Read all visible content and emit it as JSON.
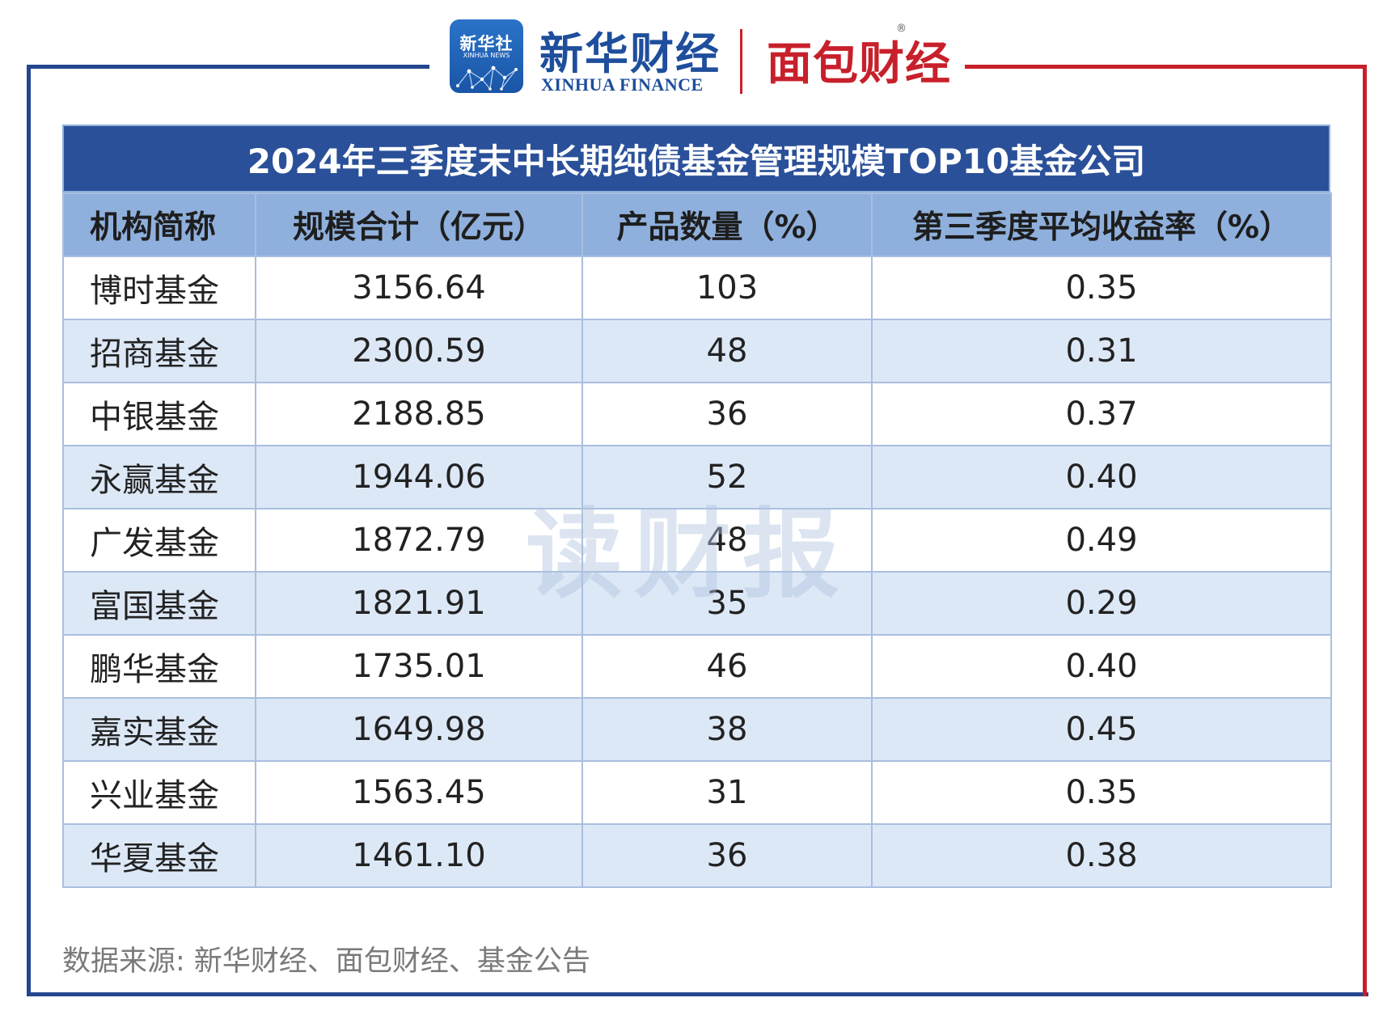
{
  "logos": {
    "xinhua_badge_title": "新华社",
    "xinhua_badge_sub": "XINHUA NEWS",
    "xinhua_cn": "新华财经",
    "xinhua_en": "XINHUA FINANCE",
    "mianbao": "面包财经",
    "registered": "®"
  },
  "watermark": "读财报",
  "chart_data": {
    "type": "table",
    "title": "2024年三季度末中长期纯债基金管理规模TOP10基金公司",
    "columns": [
      "机构简称",
      "规模合计（亿元）",
      "产品数量（%）",
      "第三季度平均收益率（%）"
    ],
    "rows": [
      [
        "博时基金",
        "3156.64",
        "103",
        "0.35"
      ],
      [
        "招商基金",
        "2300.59",
        "48",
        "0.31"
      ],
      [
        "中银基金",
        "2188.85",
        "36",
        "0.37"
      ],
      [
        "永赢基金",
        "1944.06",
        "52",
        "0.40"
      ],
      [
        "广发基金",
        "1872.79",
        "48",
        "0.49"
      ],
      [
        "富国基金",
        "1821.91",
        "35",
        "0.29"
      ],
      [
        "鹏华基金",
        "1735.01",
        "46",
        "0.40"
      ],
      [
        "嘉实基金",
        "1649.98",
        "38",
        "0.45"
      ],
      [
        "兴业基金",
        "1563.45",
        "31",
        "0.35"
      ],
      [
        "华夏基金",
        "1461.10",
        "36",
        "0.38"
      ]
    ]
  },
  "source": "数据来源: 新华财经、面包财经、基金公告",
  "colors": {
    "header_dark": "#2a5099",
    "header_light": "#8fb0dd",
    "row_alt": "#dde8f7",
    "frame_blue": "#24468f",
    "frame_red": "#c8202b"
  }
}
